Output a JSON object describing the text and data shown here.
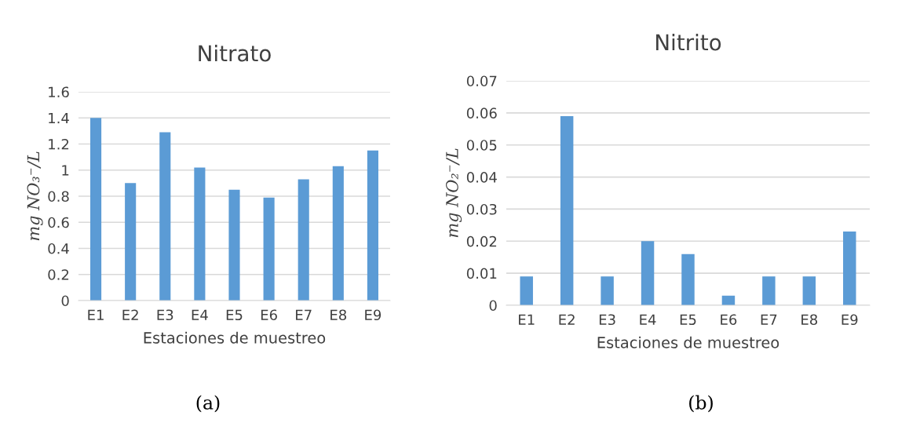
{
  "chart_data": [
    {
      "type": "bar",
      "title": "Nitrato",
      "xlabel": "Estaciones de muestreo",
      "ylabel": "mg NO₃⁻/L",
      "categories": [
        "E1",
        "E2",
        "E3",
        "E4",
        "E5",
        "E6",
        "E7",
        "E8",
        "E9"
      ],
      "values": [
        1.4,
        0.9,
        1.29,
        1.02,
        0.85,
        0.79,
        0.93,
        1.03,
        1.15
      ],
      "color": "#5b9bd5",
      "ylim": [
        0,
        1.6
      ],
      "yticks": [
        0,
        0.2,
        0.4,
        0.6,
        0.8,
        1,
        1.2,
        1.4,
        1.6
      ],
      "grid": "y",
      "annotations": [
        "(a)"
      ]
    },
    {
      "type": "bar",
      "title": "Nitrito",
      "xlabel": "Estaciones de muestreo",
      "ylabel": "mg NO₂⁻/L",
      "categories": [
        "E1",
        "E2",
        "E3",
        "E4",
        "E5",
        "E6",
        "E7",
        "E8",
        "E9"
      ],
      "values": [
        0.009,
        0.059,
        0.009,
        0.02,
        0.016,
        0.003,
        0.009,
        0.009,
        0.023
      ],
      "color": "#5b9bd5",
      "ylim": [
        0,
        0.07
      ],
      "yticks": [
        0,
        0.01,
        0.02,
        0.03,
        0.04,
        0.05,
        0.06,
        0.07
      ],
      "grid": "y",
      "annotations": [
        "(b)"
      ]
    }
  ]
}
